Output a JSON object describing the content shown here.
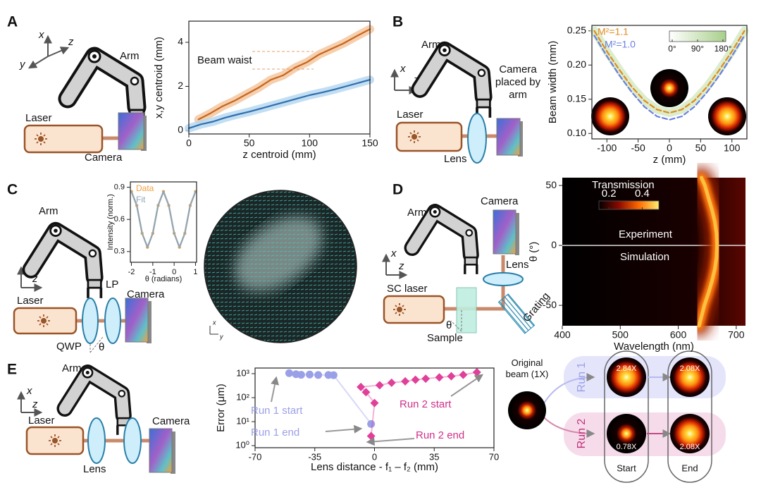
{
  "panel_labels": [
    "A",
    "B",
    "C",
    "D",
    "E"
  ],
  "diagrams": {
    "A": {
      "x": "x",
      "y": "y",
      "z": "z",
      "arm": "Arm",
      "laser": "Laser",
      "camera": "Camera"
    },
    "B": {
      "x": "x",
      "z": "z",
      "arm": "Arm",
      "camera": "Camera placed by arm",
      "laser": "Laser",
      "lens": "Lens"
    },
    "C": {
      "x": "x",
      "z": "z",
      "arm": "Arm",
      "laser": "Laser",
      "qwp": "QWP",
      "theta": "θ",
      "lp": "LP",
      "camera": "Camera",
      "image_x": "x",
      "image_y": "y"
    },
    "D": {
      "x": "x",
      "z": "z",
      "arm": "Arm",
      "camera": "Camera",
      "lens": "Lens",
      "laser": "SC laser",
      "theta": "θ",
      "sample": "Sample",
      "grating": "Grating"
    },
    "E": {
      "x": "x",
      "z": "z",
      "arm": "Arm",
      "laser": "Laser",
      "lens": "Lens",
      "camera": "Camera"
    },
    "E_beams": {
      "original": "Original beam (1X)",
      "run1": "Run 1",
      "run2": "Run 2",
      "run1_start": "2.84X",
      "run1_end": "2.08X",
      "run2_start": "0.78X",
      "run2_end": "2.08X",
      "start": "Start",
      "end": "End"
    }
  },
  "chart_data": [
    {
      "type": "line",
      "xlabel": "z centroid (mm)",
      "ylabel": "x,y centroid (mm)",
      "xlim": [
        0,
        150
      ],
      "ylim": [
        -0.16,
        4.96
      ],
      "xticks": [
        0,
        50,
        100,
        150
      ],
      "yticks": [
        0,
        2,
        4
      ],
      "annotations": [
        "Beam waist"
      ],
      "series": [
        {
          "color": "#c8651b",
          "band": "#f3c39a",
          "x": [
            8,
            18,
            28,
            38,
            48,
            58,
            68,
            78,
            88,
            98,
            108,
            118,
            128,
            138,
            150
          ],
          "values": [
            0.5,
            0.78,
            1.1,
            1.35,
            1.65,
            1.95,
            2.3,
            2.5,
            2.85,
            3.1,
            3.45,
            3.7,
            3.95,
            4.25,
            4.6
          ]
        },
        {
          "color": "#2f6fae",
          "band": "#b3d6f0",
          "x": [
            0,
            10,
            20,
            30,
            40,
            50,
            60,
            70,
            80,
            90,
            100,
            110,
            120,
            130,
            140,
            150
          ],
          "values": [
            0.1,
            0.28,
            0.4,
            0.58,
            0.72,
            0.85,
            1.0,
            1.15,
            1.3,
            1.45,
            1.6,
            1.72,
            1.85,
            2.0,
            2.15,
            2.3
          ]
        }
      ]
    },
    {
      "type": "line",
      "xlabel": "z (mm)",
      "ylabel": "Beam width (mm)",
      "xlim": [
        -124,
        124
      ],
      "ylim": [
        0.092,
        0.258
      ],
      "xticks": [
        -100,
        -50,
        0,
        50,
        100
      ],
      "yticks": [
        {
          "value": 0.1,
          "label": "0.10"
        },
        0.15,
        {
          "value": 0.2,
          "label": "0.20"
        },
        0.25
      ],
      "legend": "upper left",
      "colorbar": {
        "lim": [
          -10,
          190
        ],
        "ticks": [
          {
            "value": 0,
            "label": "0°"
          },
          {
            "value": 90,
            "label": "90°"
          },
          {
            "value": 180,
            "label": "180°"
          }
        ],
        "colors": [
          "#ffffff",
          "#a8cf8a"
        ]
      },
      "x": [
        -120,
        -100,
        -80,
        -60,
        -40,
        -20,
        0,
        20,
        40,
        60,
        80,
        100,
        120
      ],
      "series": [
        {
          "name": "M²=1.1",
          "color": "#e08a1e",
          "dash": true,
          "band": "#d3e8c0",
          "values": [
            0.25,
            0.22,
            0.193,
            0.168,
            0.148,
            0.135,
            0.13,
            0.135,
            0.148,
            0.168,
            0.193,
            0.22,
            0.25
          ]
        },
        {
          "name": "M²=1.0",
          "color": "#6b7fe0",
          "dash": true,
          "values": [
            0.243,
            0.213,
            0.185,
            0.16,
            0.139,
            0.125,
            0.12,
            0.125,
            0.139,
            0.16,
            0.185,
            0.213,
            0.243
          ]
        }
      ]
    },
    {
      "type": "line",
      "xlabel": "θ (radians)",
      "ylabel": "Intensity (norm.)",
      "xlim": [
        -2.05,
        1.05
      ],
      "ylim": [
        0.2,
        0.95
      ],
      "xticks": [
        -2,
        -1,
        0,
        1
      ],
      "yticks": [
        0.3,
        0.6,
        0.9
      ],
      "legend": "upper left",
      "x": [
        -2,
        -1.75,
        -1.5,
        -1.25,
        -1,
        -0.75,
        -0.5,
        -0.25,
        0,
        0.25,
        0.5,
        0.75,
        1
      ],
      "series": [
        {
          "name": "Data",
          "color": "#f0a040",
          "marker": "circle",
          "values": [
            0.86,
            0.73,
            0.47,
            0.34,
            0.47,
            0.73,
            0.86,
            0.73,
            0.47,
            0.34,
            0.47,
            0.73,
            0.86
          ]
        },
        {
          "name": "Fit",
          "color": "#8fa6b8",
          "values": [
            0.86,
            0.73,
            0.47,
            0.34,
            0.47,
            0.73,
            0.86,
            0.73,
            0.47,
            0.34,
            0.47,
            0.73,
            0.86
          ]
        }
      ]
    },
    {
      "type": "line",
      "xlabel": "Wavelength (nm)",
      "ylabel": "θ (°)",
      "xlim": [
        400,
        716
      ],
      "ylim": [
        -67,
        56.5
      ],
      "xticks": [
        400,
        500,
        600,
        700
      ],
      "yticks": [
        -50,
        0,
        50
      ],
      "annotations": [
        "Experiment",
        "Simulation"
      ],
      "colorbar": {
        "label": "Transmission",
        "lim": [
          0.14,
          0.5
        ],
        "ticks": [
          0.2,
          0.4
        ],
        "colors": [
          "#000000",
          "#8a0a00",
          "#ff6a00",
          "#fff070"
        ]
      },
      "series": [
        {
          "color": "#ffc040",
          "glow": true,
          "x": [
            636,
            645,
            652,
            658,
            663,
            666,
            667,
            666,
            663,
            658,
            652,
            646,
            640
          ],
          "values": [
            -67,
            -50,
            -40,
            -30,
            -20,
            -10,
            0,
            10,
            20,
            30,
            40,
            50,
            56.5
          ]
        }
      ]
    },
    {
      "type": "line",
      "xlabel": "Lens distance - f₁ – f₂ (mm)",
      "ylabel": "Error (μm)",
      "ylog": true,
      "xlim": [
        -70,
        70
      ],
      "ylim": [
        0.82,
        1720
      ],
      "xticks": [
        -70,
        -35,
        0,
        35,
        70
      ],
      "yticks": [
        {
          "value": 1,
          "label": "10⁰"
        },
        {
          "value": 10,
          "label": "10¹"
        },
        {
          "value": 100,
          "label": "10²"
        },
        {
          "value": 1000,
          "label": "10³"
        }
      ],
      "annotations": [
        "Run 1 start",
        "Run 1 end",
        "Run 2 start",
        "Run 2 end"
      ],
      "series": [
        {
          "color": "#9aa0e8",
          "marker": "circle",
          "x": [
            -50,
            -46,
            -43,
            -38,
            -33,
            -27,
            -24,
            -2
          ],
          "values": [
            1050,
            950,
            900,
            920,
            880,
            880,
            870,
            8
          ]
        },
        {
          "color": "#e0409a",
          "marker": "diamond",
          "x": [
            60,
            52,
            45,
            38,
            30,
            24,
            18,
            10,
            3,
            -8,
            -5,
            0,
            -2
          ],
          "values": [
            1150,
            900,
            780,
            700,
            620,
            560,
            480,
            420,
            330,
            280,
            170,
            60,
            2.5
          ]
        }
      ]
    }
  ]
}
